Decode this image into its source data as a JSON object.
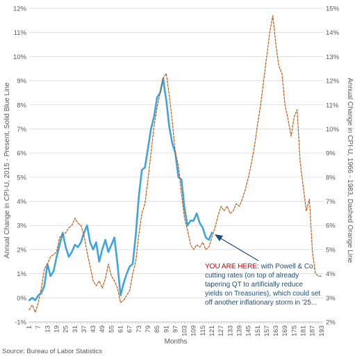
{
  "chart_data": {
    "type": "line",
    "xlabel": "Months",
    "ylabel_left": "Annual Change in CPI-U, 2015 - Present, Solid Blue Line",
    "ylabel_right": "Annual Change in CPI-U, 1966 - 1983, Dashed Orange Line",
    "ylim_left": [
      -1,
      12
    ],
    "ylim_right": [
      2,
      15
    ],
    "y_ticks_left": [
      "-1%",
      "0%",
      "1%",
      "2%",
      "3%",
      "4%",
      "5%",
      "6%",
      "7%",
      "8%",
      "9%",
      "10%",
      "11%",
      "12%"
    ],
    "y_ticks_right": [
      "2%",
      "3%",
      "4%",
      "5%",
      "6%",
      "7%",
      "8%",
      "9%",
      "10%",
      "11%",
      "12%",
      "13%",
      "14%",
      "15%"
    ],
    "x_ticks": [
      1,
      7,
      13,
      19,
      25,
      31,
      37,
      43,
      49,
      55,
      61,
      67,
      73,
      79,
      85,
      91,
      97,
      103,
      109,
      115,
      121,
      127,
      133,
      139,
      145,
      151,
      157,
      163,
      169,
      175,
      181,
      187,
      193
    ],
    "grid": true,
    "source": "Source: Bureau of Labor Statistics",
    "annotation": {
      "highlight": "YOU ARE HERE:",
      "lines": [
        " with Powell & Co.",
        "cutting rates (on top of already",
        "tapering QT to artificially reduce",
        "yields on Treasuries), which could set",
        "off another inflationary storm in '25..."
      ],
      "target_x": 121,
      "target_y": 2.7
    },
    "series": [
      {
        "axis": "left",
        "color": "#3ea4dc",
        "style": "solid",
        "x": [
          1,
          3,
          5,
          7,
          9,
          11,
          13,
          15,
          17,
          19,
          21,
          23,
          25,
          27,
          29,
          31,
          33,
          35,
          37,
          39,
          41,
          43,
          45,
          47,
          49,
          51,
          53,
          55,
          57,
          59,
          61,
          63,
          65,
          67,
          69,
          71,
          73,
          75,
          77,
          79,
          81,
          83,
          85,
          87,
          89,
          90,
          91,
          93,
          95,
          97,
          99,
          101,
          103,
          105,
          107,
          109,
          111,
          113,
          115,
          117,
          119,
          121
        ],
        "y": [
          -0.1,
          0.0,
          -0.1,
          0.1,
          0.2,
          0.5,
          1.4,
          0.9,
          1.1,
          1.7,
          2.2,
          2.7,
          2.1,
          1.7,
          1.9,
          2.2,
          2.1,
          2.3,
          2.7,
          3.0,
          2.3,
          2.0,
          2.3,
          1.5,
          2.0,
          2.4,
          1.9,
          2.2,
          2.5,
          1.4,
          0.1,
          0.6,
          1.0,
          1.3,
          1.4,
          2.6,
          4.2,
          5.3,
          5.4,
          6.2,
          7.0,
          7.5,
          8.3,
          8.5,
          9.1,
          8.6,
          8.2,
          7.1,
          6.4,
          6.0,
          5.0,
          4.9,
          3.7,
          3.0,
          3.2,
          3.2,
          3.5,
          3.1,
          2.9,
          2.5,
          2.4,
          2.7
        ]
      },
      {
        "axis": "right",
        "color": "#c55a11",
        "style": "dashed",
        "x": [
          1,
          3,
          5,
          7,
          9,
          11,
          13,
          15,
          17,
          19,
          21,
          23,
          25,
          27,
          29,
          31,
          33,
          35,
          37,
          39,
          41,
          43,
          45,
          47,
          49,
          51,
          53,
          55,
          57,
          59,
          61,
          63,
          65,
          67,
          69,
          71,
          73,
          75,
          77,
          79,
          81,
          83,
          85,
          87,
          89,
          91,
          93,
          95,
          97,
          99,
          101,
          103,
          105,
          107,
          109,
          111,
          113,
          115,
          117,
          119,
          121,
          123,
          125,
          127,
          129,
          131,
          133,
          135,
          137,
          139,
          141,
          143,
          145,
          147,
          149,
          151,
          153,
          155,
          157,
          159,
          161,
          163,
          165,
          167,
          169,
          171,
          173,
          175,
          177,
          179,
          181,
          183,
          185,
          187,
          189,
          191,
          193
        ],
        "y": [
          2.5,
          2.7,
          2.4,
          2.8,
          3.4,
          4.2,
          4.4,
          4.7,
          4.8,
          4.9,
          5.5,
          5.6,
          5.7,
          5.9,
          6.0,
          6.3,
          6.1,
          6.0,
          5.6,
          4.9,
          4.3,
          3.7,
          3.5,
          3.7,
          3.4,
          3.8,
          4.4,
          3.9,
          3.7,
          3.4,
          2.8,
          2.9,
          3.1,
          3.3,
          4.0,
          4.5,
          5.6,
          6.5,
          6.9,
          7.9,
          9.0,
          10.1,
          10.9,
          11.5,
          12.1,
          12.3,
          11.4,
          10.3,
          9.0,
          8.5,
          7.3,
          6.3,
          5.8,
          5.2,
          5.0,
          5.2,
          5.1,
          5.3,
          5.0,
          5.1,
          5.5,
          5.9,
          6.4,
          6.8,
          6.6,
          6.8,
          6.5,
          6.6,
          6.9,
          6.8,
          7.1,
          7.5,
          8.0,
          8.6,
          9.3,
          10.2,
          11.0,
          12.0,
          13.0,
          14.0,
          14.7,
          13.5,
          12.6,
          12.3,
          11.0,
          10.4,
          9.7,
          10.5,
          10.8,
          8.6,
          7.6,
          6.6,
          7.1,
          4.9,
          4.0,
          3.9,
          3.9
        ]
      }
    ]
  }
}
